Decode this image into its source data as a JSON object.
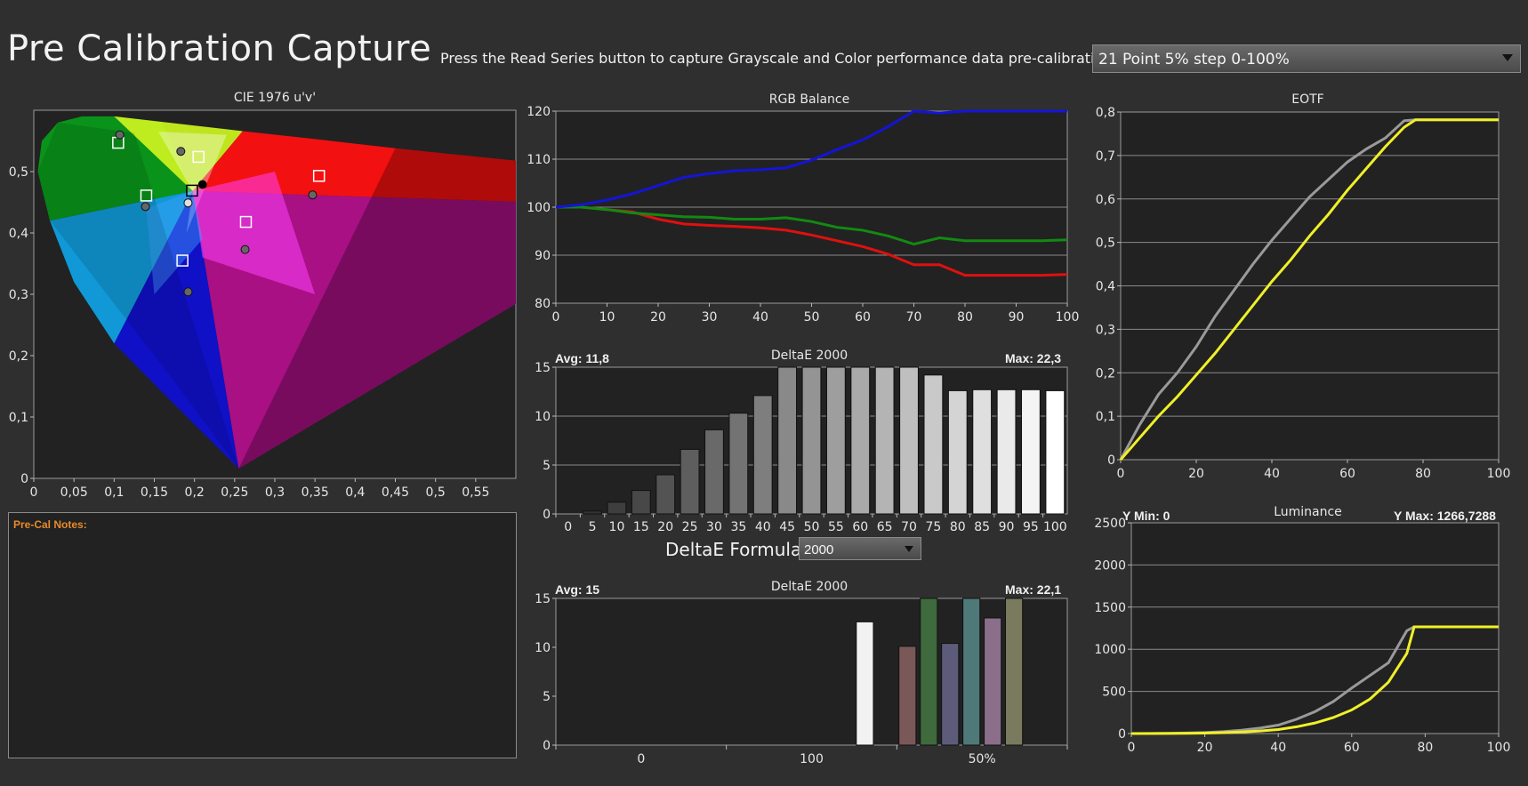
{
  "header": {
    "title": "Pre Calibration Capture",
    "instructions": "Press the Read Series button to capture Grayscale and Color performance data pre-calibration.",
    "series_selected": "21 Point 5% step 0-100%"
  },
  "notes": {
    "label": "Pre-Cal Notes:"
  },
  "deltae_formula": {
    "label": "DeltaE Formula",
    "selected": "2000"
  },
  "colors": {
    "red": "#e01010",
    "green": "#128a12",
    "blue": "#1414d8",
    "target_gamma": "#9a9a9a",
    "measured": "#f0f028"
  },
  "chart_data": [
    {
      "id": "cie",
      "type": "scatter",
      "title": "CIE 1976 u'v'",
      "xlim": [
        0,
        0.6
      ],
      "ylim": [
        0,
        0.6
      ],
      "x_ticks": [
        "0",
        "0,05",
        "0,1",
        "0,15",
        "0,2",
        "0,25",
        "0,3",
        "0,35",
        "0,4",
        "0,45",
        "0,5",
        "0,55"
      ],
      "y_ticks": [
        "0",
        "0,1",
        "0,2",
        "0,3",
        "0,4",
        "0,5"
      ],
      "gamut_triangle": {
        "red": [
          0.451,
          0.523
        ],
        "green": [
          0.125,
          0.563
        ],
        "blue": [
          0.175,
          0.158
        ]
      },
      "targets": [
        [
          0.105,
          0.547
        ],
        [
          0.205,
          0.524
        ],
        [
          0.14,
          0.461
        ],
        [
          0.197,
          0.469
        ],
        [
          0.355,
          0.493
        ],
        [
          0.264,
          0.418
        ],
        [
          0.185,
          0.355
        ]
      ],
      "measured": [
        [
          0.107,
          0.56
        ],
        [
          0.183,
          0.533
        ],
        [
          0.139,
          0.443
        ],
        [
          0.192,
          0.449
        ],
        [
          0.21,
          0.479
        ],
        [
          0.347,
          0.462
        ],
        [
          0.263,
          0.373
        ],
        [
          0.192,
          0.304
        ]
      ]
    },
    {
      "id": "rgb",
      "type": "line",
      "title": "RGB Balance",
      "x": [
        0,
        5,
        10,
        15,
        20,
        25,
        30,
        35,
        40,
        45,
        50,
        55,
        60,
        65,
        70,
        75,
        80,
        85,
        90,
        95,
        100
      ],
      "xlim": [
        0,
        100
      ],
      "ylim": [
        80,
        120
      ],
      "x_ticks": [
        "0",
        "10",
        "20",
        "30",
        "40",
        "50",
        "60",
        "70",
        "80",
        "90",
        "100"
      ],
      "y_ticks": [
        "80",
        "90",
        "100",
        "110",
        "120"
      ],
      "series": [
        {
          "color": "red",
          "values": [
            100,
            100,
            99.5,
            99,
            97.5,
            96.5,
            96.2,
            96,
            95.7,
            95.2,
            94.2,
            93,
            91.8,
            90.2,
            88,
            88,
            85.8,
            85.8,
            85.8,
            85.8,
            86
          ]
        },
        {
          "color": "green",
          "values": [
            100,
            100,
            99.5,
            98.8,
            98.4,
            98,
            97.9,
            97.5,
            97.5,
            97.8,
            97,
            95.8,
            95.2,
            94,
            92.3,
            93.6,
            93,
            93,
            93,
            93,
            93.2
          ]
        },
        {
          "color": "blue",
          "values": [
            100,
            100.5,
            101.5,
            102.8,
            104.5,
            106.2,
            107,
            107.6,
            107.8,
            108.2,
            109.8,
            112,
            114,
            116.8,
            120,
            119.6,
            120,
            120,
            120,
            120,
            120
          ]
        }
      ]
    },
    {
      "id": "de_gray",
      "type": "bar",
      "title": "DeltaE 2000",
      "avg_label": "Avg: 11,8",
      "max_label": "Max: 22,3",
      "categories": [
        "0",
        "5",
        "10",
        "15",
        "20",
        "25",
        "30",
        "35",
        "40",
        "45",
        "50",
        "55",
        "60",
        "65",
        "70",
        "75",
        "80",
        "85",
        "90",
        "95",
        "100"
      ],
      "values": [
        0,
        0.3,
        1.2,
        2.4,
        4,
        6.6,
        8.6,
        10.3,
        12.1,
        15,
        15,
        15,
        15,
        15,
        15,
        14.2,
        12.6,
        12.7,
        12.7,
        12.7,
        12.6
      ],
      "ylim": [
        0,
        15
      ],
      "y_ticks": [
        "0",
        "5",
        "10",
        "15"
      ]
    },
    {
      "id": "de_color",
      "type": "bar",
      "title": "DeltaE 2000",
      "avg_label": "Avg: 15",
      "max_label": "Max: 22,1",
      "x_ticks": [
        "0",
        "100",
        "50%"
      ],
      "bars": [
        {
          "color": "#f2f2f2",
          "value": 12.6
        },
        {
          "color": "#7a5858",
          "value": 10.1
        },
        {
          "color": "#3e6a3e",
          "value": 15
        },
        {
          "color": "#5c5c7a",
          "value": 10.4
        },
        {
          "color": "#4f7878",
          "value": 15
        },
        {
          "color": "#8a6e8a",
          "value": 13
        },
        {
          "color": "#7a7a5e",
          "value": 15
        }
      ],
      "ylim": [
        0,
        15
      ],
      "y_ticks": [
        "0",
        "5",
        "10",
        "15"
      ]
    },
    {
      "id": "eotf",
      "type": "line",
      "title": "EOTF",
      "x": [
        0,
        5,
        10,
        15,
        20,
        25,
        30,
        35,
        40,
        45,
        50,
        55,
        60,
        65,
        70,
        75,
        78,
        80,
        85,
        90,
        95,
        100
      ],
      "xlim": [
        0,
        100
      ],
      "ylim": [
        0,
        0.8
      ],
      "x_ticks": [
        "0",
        "20",
        "40",
        "60",
        "80",
        "100"
      ],
      "y_ticks": [
        "0",
        "0,1",
        "0,2",
        "0,3",
        "0,4",
        "0,5",
        "0,6",
        "0,7",
        "0,8"
      ],
      "series": [
        {
          "color": "target_gamma",
          "values": [
            0,
            0.08,
            0.15,
            0.2,
            0.26,
            0.33,
            0.39,
            0.45,
            0.505,
            0.555,
            0.605,
            0.645,
            0.685,
            0.715,
            0.74,
            0.78,
            0.782,
            0.782,
            0.782,
            0.782,
            0.782,
            0.782
          ]
        },
        {
          "color": "measured",
          "values": [
            0,
            0.05,
            0.1,
            0.145,
            0.195,
            0.245,
            0.3,
            0.355,
            0.41,
            0.46,
            0.515,
            0.565,
            0.62,
            0.67,
            0.72,
            0.765,
            0.782,
            0.782,
            0.782,
            0.782,
            0.782,
            0.782
          ]
        }
      ]
    },
    {
      "id": "lum",
      "type": "line",
      "title": "Luminance",
      "ymin_label": "Y Min: 0",
      "ymax_label": "Y Max: 1266,7288",
      "x": [
        0,
        5,
        10,
        15,
        20,
        25,
        30,
        35,
        40,
        45,
        50,
        55,
        60,
        65,
        70,
        75,
        77,
        80,
        85,
        90,
        95,
        100
      ],
      "xlim": [
        0,
        100
      ],
      "ylim": [
        0,
        2500
      ],
      "x_ticks": [
        "0",
        "20",
        "40",
        "60",
        "80",
        "100"
      ],
      "y_ticks": [
        "0",
        "500",
        "1000",
        "1500",
        "2000",
        "2500"
      ],
      "series": [
        {
          "color": "target_gamma",
          "values": [
            0,
            1,
            3,
            6,
            12,
            22,
            40,
            65,
            100,
            170,
            260,
            380,
            540,
            690,
            840,
            1220,
            1266,
            1266,
            1266,
            1266,
            1266,
            1266
          ]
        },
        {
          "color": "measured",
          "values": [
            0,
            0,
            1,
            2,
            5,
            10,
            18,
            30,
            48,
            80,
            125,
            190,
            280,
            410,
            610,
            950,
            1266,
            1266,
            1266,
            1266,
            1266,
            1266
          ]
        }
      ]
    }
  ]
}
